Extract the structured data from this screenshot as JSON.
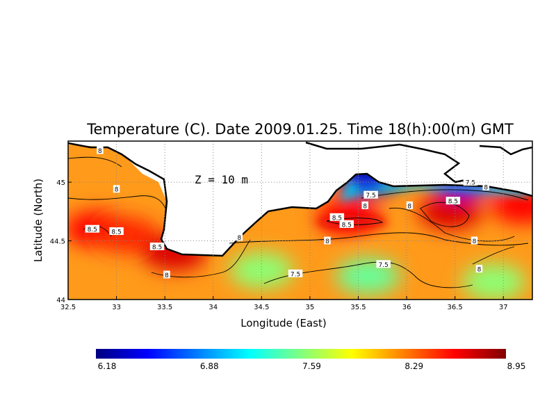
{
  "chart_data": {
    "type": "heatmap",
    "title": "Temperature (C). Date 2009.01.25. Time 18(h):00(m) GMT",
    "xlabel": "Longitude (East)",
    "ylabel": "Latitude (North)",
    "xlim": [
      32.5,
      37.3
    ],
    "ylim": [
      44.0,
      45.35
    ],
    "x_ticks": [
      32.5,
      33,
      33.5,
      34,
      34.5,
      35,
      35.5,
      36,
      36.5,
      37
    ],
    "x_tick_labels": [
      "32.5",
      "33",
      "33.5",
      "34",
      "34.5",
      "35",
      "35.5",
      "36",
      "36.5",
      "37"
    ],
    "y_ticks": [
      44,
      44.5,
      45
    ],
    "y_tick_labels": [
      "44",
      "44.5",
      "45"
    ],
    "grid": true,
    "annotation": "Z = 10 m",
    "colorbar": {
      "ticks": [
        "6.18",
        "6.88",
        "7.59",
        "8.29",
        "8.95"
      ],
      "vmin": 6.18,
      "vmax": 8.95,
      "colors": [
        "#00007f",
        "#0000ff",
        "#0080ff",
        "#00ffff",
        "#80ff80",
        "#ffff00",
        "#ff8000",
        "#ff0000",
        "#7f0000"
      ]
    },
    "hot_spots": [
      {
        "lon": 32.8,
        "lat": 44.6,
        "value": 8.6
      },
      {
        "lon": 33.1,
        "lat": 44.55,
        "value": 8.5
      },
      {
        "lon": 33.6,
        "lat": 44.4,
        "value": 8.7
      },
      {
        "lon": 35.4,
        "lat": 44.7,
        "value": 8.6
      },
      {
        "lon": 36.45,
        "lat": 44.75,
        "value": 8.7
      },
      {
        "lon": 37.2,
        "lat": 44.8,
        "value": 8.6
      },
      {
        "lon": 35.6,
        "lat": 45.05,
        "value": 6.3
      },
      {
        "lon": 36.6,
        "lat": 45.05,
        "value": 6.5
      },
      {
        "lon": 35.6,
        "lat": 44.2,
        "value": 7.5
      },
      {
        "lon": 34.5,
        "lat": 44.25,
        "value": 7.6
      },
      {
        "lon": 36.9,
        "lat": 44.15,
        "value": 7.6
      }
    ],
    "contour_labels": [
      {
        "lon": 32.83,
        "lat": 45.27,
        "text": "8"
      },
      {
        "lon": 33.0,
        "lat": 44.94,
        "text": "8"
      },
      {
        "lon": 32.75,
        "lat": 44.6,
        "text": "8.5"
      },
      {
        "lon": 33.0,
        "lat": 44.58,
        "text": "8.5"
      },
      {
        "lon": 33.42,
        "lat": 44.45,
        "text": "8.5"
      },
      {
        "lon": 33.52,
        "lat": 44.21,
        "text": "8"
      },
      {
        "lon": 34.27,
        "lat": 44.53,
        "text": "8"
      },
      {
        "lon": 34.85,
        "lat": 44.22,
        "text": "7.5"
      },
      {
        "lon": 35.18,
        "lat": 44.5,
        "text": "8"
      },
      {
        "lon": 35.28,
        "lat": 44.7,
        "text": "8.5"
      },
      {
        "lon": 35.38,
        "lat": 44.64,
        "text": "8.5"
      },
      {
        "lon": 35.57,
        "lat": 44.8,
        "text": "8"
      },
      {
        "lon": 35.63,
        "lat": 44.89,
        "text": "7.5"
      },
      {
        "lon": 35.76,
        "lat": 44.3,
        "text": "7.5"
      },
      {
        "lon": 36.03,
        "lat": 44.8,
        "text": "8"
      },
      {
        "lon": 36.48,
        "lat": 44.84,
        "text": "8.5"
      },
      {
        "lon": 36.66,
        "lat": 45.0,
        "text": "7.5"
      },
      {
        "lon": 36.82,
        "lat": 44.96,
        "text": "8"
      },
      {
        "lon": 36.7,
        "lat": 44.5,
        "text": "8"
      },
      {
        "lon": 36.75,
        "lat": 44.26,
        "text": "8"
      }
    ]
  }
}
